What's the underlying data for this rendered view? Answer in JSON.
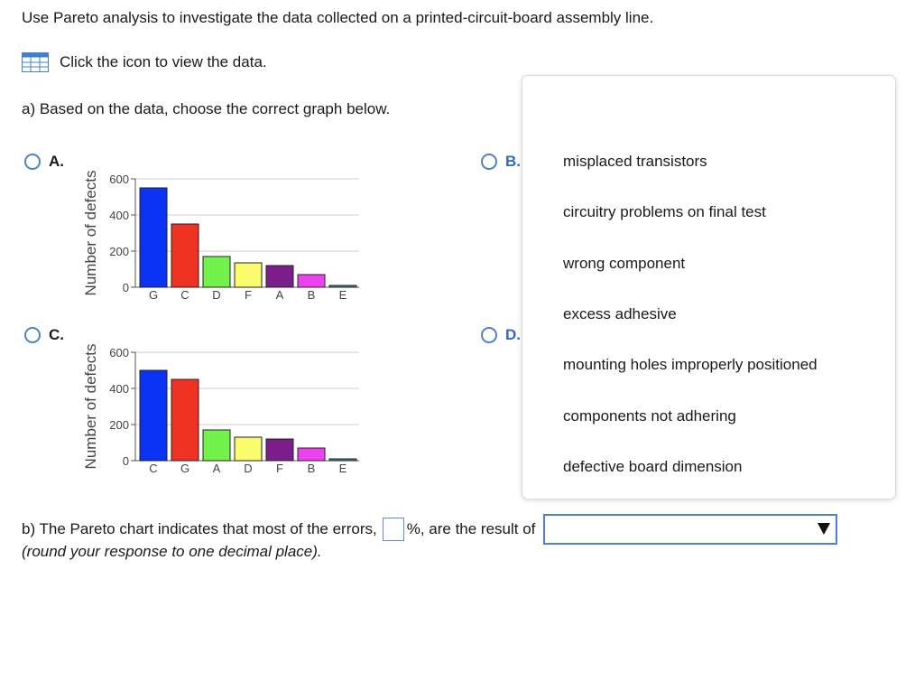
{
  "question": {
    "title": "Use Pareto analysis to investigate the data collected on a printed-circuit-board assembly line.",
    "data_link": "Click the icon to view the data.",
    "part_a": "a) Based on the data, choose the correct graph below.",
    "part_b_prefix": "b) The Pareto chart indicates that most of the errors,",
    "part_b_mid": "%, are the result of",
    "part_b_note": "(round your response to one decimal place)."
  },
  "options": [
    {
      "label": "A."
    },
    {
      "label": "B."
    },
    {
      "label": "C."
    },
    {
      "label": "D."
    }
  ],
  "dropdown": {
    "selected": "",
    "items": [
      "misplaced transistors",
      "circuitry problems on final test",
      "wrong component",
      "excess adhesive",
      "mounting holes improperly positioned",
      "components not adhering",
      "defective board dimension"
    ]
  },
  "colors": {
    "blue": "#0a33f5",
    "red": "#f03223",
    "green": "#74f24c",
    "yellow": "#fbfb6e",
    "purple": "#7b1e8c",
    "magenta": "#ee41ee",
    "teal": "#3c8a8a",
    "accent": "#4f7fd6"
  },
  "chart_data": [
    {
      "id": "A",
      "type": "bar",
      "ylabel": "Number of defects",
      "ylim": [
        0,
        600
      ],
      "yticks": [
        "0",
        "200",
        "400",
        "600"
      ],
      "categories": [
        "G",
        "C",
        "D",
        "F",
        "A",
        "B",
        "E"
      ],
      "values": [
        550,
        350,
        170,
        135,
        120,
        70,
        10
      ],
      "bar_colors": [
        "#0a33f5",
        "#f03223",
        "#74f24c",
        "#fbfb6e",
        "#7b1e8c",
        "#ee41ee",
        "#3c8a8a"
      ]
    },
    {
      "id": "C",
      "type": "bar",
      "ylabel": "Number of defects",
      "ylim": [
        0,
        600
      ],
      "yticks": [
        "0",
        "200",
        "400",
        "600"
      ],
      "categories": [
        "C",
        "G",
        "A",
        "D",
        "F",
        "B",
        "E"
      ],
      "values": [
        500,
        450,
        170,
        130,
        120,
        70,
        10
      ],
      "bar_colors": [
        "#0a33f5",
        "#f03223",
        "#74f24c",
        "#fbfb6e",
        "#7b1e8c",
        "#ee41ee",
        "#3c8a8a"
      ]
    }
  ]
}
